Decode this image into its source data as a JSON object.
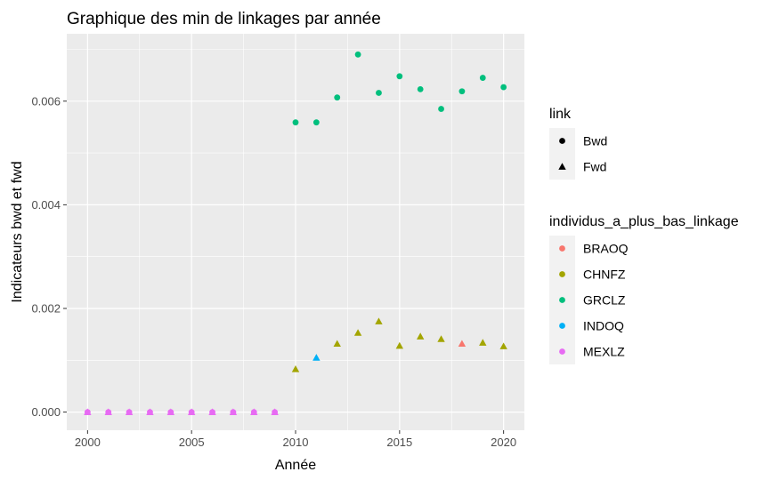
{
  "chart_data": {
    "type": "scatter",
    "title": "Graphique des min de linkages par année",
    "xlabel": "Année",
    "ylabel": "Indicateurs bwd et fwd",
    "xlim": [
      1999,
      2021
    ],
    "ylim": [
      -0.00035,
      0.0073
    ],
    "x_ticks": [
      2000,
      2005,
      2010,
      2015,
      2020
    ],
    "x_tick_labels": [
      "2000",
      "2005",
      "2010",
      "2015",
      "2020"
    ],
    "y_ticks": [
      0.0,
      0.002,
      0.004,
      0.006
    ],
    "y_tick_labels": [
      "0.000",
      "0.002",
      "0.004",
      "0.006"
    ],
    "x_minor": [
      2002.5,
      2007.5,
      2012.5,
      2017.5
    ],
    "y_minor": [
      0.001,
      0.003,
      0.005,
      0.007
    ],
    "grid": true,
    "panel_background": "#ebebeb",
    "legend_position": "right",
    "shape_legend": {
      "title": "link",
      "entries": [
        {
          "label": "Bwd",
          "shape": "circle"
        },
        {
          "label": "Fwd",
          "shape": "triangle"
        }
      ]
    },
    "color_legend": {
      "title": "individus_a_plus_bas_linkage",
      "entries": [
        {
          "label": "BRAOQ",
          "color": "#F8766D"
        },
        {
          "label": "CHNFZ",
          "color": "#A3A500"
        },
        {
          "label": "GRCLZ",
          "color": "#00BF7D"
        },
        {
          "label": "INDOQ",
          "color": "#00B0F6"
        },
        {
          "label": "MEXLZ",
          "color": "#E76BF3"
        }
      ]
    },
    "series": [
      {
        "link": "Bwd",
        "points": [
          {
            "x": 2000,
            "y": 0.0,
            "group": "MEXLZ"
          },
          {
            "x": 2001,
            "y": 0.0,
            "group": "MEXLZ"
          },
          {
            "x": 2002,
            "y": 0.0,
            "group": "MEXLZ"
          },
          {
            "x": 2003,
            "y": 0.0,
            "group": "MEXLZ"
          },
          {
            "x": 2004,
            "y": 0.0,
            "group": "MEXLZ"
          },
          {
            "x": 2005,
            "y": 0.0,
            "group": "MEXLZ"
          },
          {
            "x": 2006,
            "y": 0.0,
            "group": "MEXLZ"
          },
          {
            "x": 2007,
            "y": 0.0,
            "group": "MEXLZ"
          },
          {
            "x": 2008,
            "y": 0.0,
            "group": "MEXLZ"
          },
          {
            "x": 2009,
            "y": 0.0,
            "group": "MEXLZ"
          },
          {
            "x": 2010,
            "y": 0.00559,
            "group": "GRCLZ"
          },
          {
            "x": 2011,
            "y": 0.00559,
            "group": "GRCLZ"
          },
          {
            "x": 2012,
            "y": 0.00607,
            "group": "GRCLZ"
          },
          {
            "x": 2013,
            "y": 0.0069,
            "group": "GRCLZ"
          },
          {
            "x": 2014,
            "y": 0.00616,
            "group": "GRCLZ"
          },
          {
            "x": 2015,
            "y": 0.00648,
            "group": "GRCLZ"
          },
          {
            "x": 2016,
            "y": 0.00623,
            "group": "GRCLZ"
          },
          {
            "x": 2017,
            "y": 0.00585,
            "group": "GRCLZ"
          },
          {
            "x": 2018,
            "y": 0.00619,
            "group": "GRCLZ"
          },
          {
            "x": 2019,
            "y": 0.00645,
            "group": "GRCLZ"
          },
          {
            "x": 2020,
            "y": 0.00627,
            "group": "GRCLZ"
          }
        ]
      },
      {
        "link": "Fwd",
        "points": [
          {
            "x": 2000,
            "y": 0.0,
            "group": "MEXLZ"
          },
          {
            "x": 2001,
            "y": 0.0,
            "group": "MEXLZ"
          },
          {
            "x": 2002,
            "y": 0.0,
            "group": "MEXLZ"
          },
          {
            "x": 2003,
            "y": 0.0,
            "group": "MEXLZ"
          },
          {
            "x": 2004,
            "y": 0.0,
            "group": "MEXLZ"
          },
          {
            "x": 2005,
            "y": 0.0,
            "group": "MEXLZ"
          },
          {
            "x": 2006,
            "y": 0.0,
            "group": "MEXLZ"
          },
          {
            "x": 2007,
            "y": 0.0,
            "group": "MEXLZ"
          },
          {
            "x": 2008,
            "y": 0.0,
            "group": "MEXLZ"
          },
          {
            "x": 2009,
            "y": 0.0,
            "group": "MEXLZ"
          },
          {
            "x": 2010,
            "y": 0.00083,
            "group": "CHNFZ"
          },
          {
            "x": 2011,
            "y": 0.00105,
            "group": "INDOQ"
          },
          {
            "x": 2012,
            "y": 0.00132,
            "group": "CHNFZ"
          },
          {
            "x": 2013,
            "y": 0.00153,
            "group": "CHNFZ"
          },
          {
            "x": 2014,
            "y": 0.00175,
            "group": "CHNFZ"
          },
          {
            "x": 2015,
            "y": 0.00128,
            "group": "CHNFZ"
          },
          {
            "x": 2016,
            "y": 0.00146,
            "group": "CHNFZ"
          },
          {
            "x": 2017,
            "y": 0.00141,
            "group": "CHNFZ"
          },
          {
            "x": 2018,
            "y": 0.00132,
            "group": "BRAOQ"
          },
          {
            "x": 2019,
            "y": 0.00134,
            "group": "CHNFZ"
          },
          {
            "x": 2020,
            "y": 0.00127,
            "group": "CHNFZ"
          }
        ]
      }
    ]
  }
}
